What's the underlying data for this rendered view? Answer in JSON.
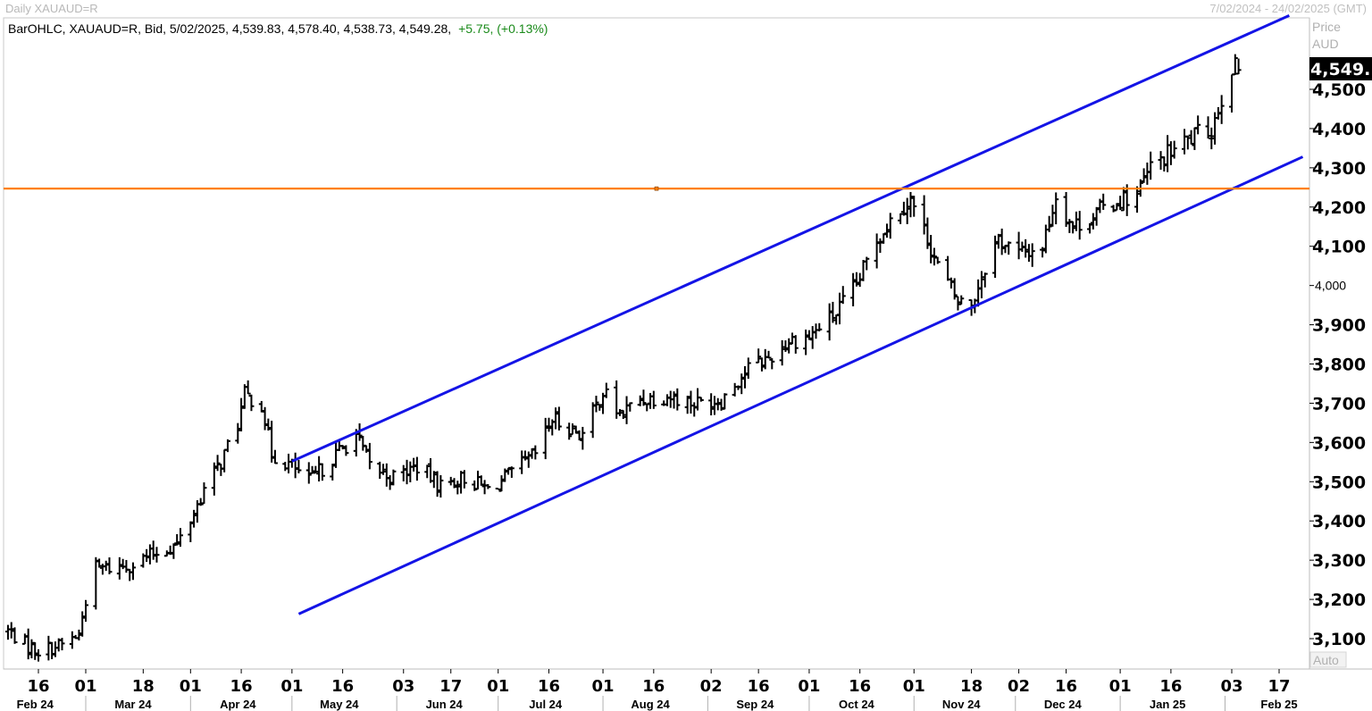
{
  "header": {
    "left_title": "Daily XAUAUD=R",
    "right_range": "7/02/2024 - 24/02/2025 (GMT)"
  },
  "legend": {
    "prefix": "BarOHLC, XAUAUD=R, Bid, 5/02/2025, 4,539.83, 4,578.40, 4,538.73, 4,549.28,",
    "change": "+5.75, (+0.13%)",
    "change_color": "#1a8a1a"
  },
  "axis": {
    "header_line1": "Price",
    "header_line2": "AUD",
    "auto_label": "Auto",
    "last_value_label": "4,549.",
    "last_value": 4549.28
  },
  "chart_data": {
    "type": "bar",
    "subtype": "ohlc",
    "instrument": "XAUAUD=R",
    "y_ticks": [
      {
        "value": 3100,
        "label": "3,100",
        "small": false
      },
      {
        "value": 3200,
        "label": "3,200",
        "small": false
      },
      {
        "value": 3300,
        "label": "3,300",
        "small": false
      },
      {
        "value": 3400,
        "label": "3,400",
        "small": false
      },
      {
        "value": 3500,
        "label": "3,500",
        "small": false
      },
      {
        "value": 3600,
        "label": "3,600",
        "small": false
      },
      {
        "value": 3700,
        "label": "3,700",
        "small": false
      },
      {
        "value": 3800,
        "label": "3,800",
        "small": false
      },
      {
        "value": 3900,
        "label": "3,900",
        "small": false
      },
      {
        "value": 4000,
        "label": "4,000",
        "small": true
      },
      {
        "value": 4100,
        "label": "4,100",
        "small": false
      },
      {
        "value": 4200,
        "label": "4,200",
        "small": false
      },
      {
        "value": 4300,
        "label": "4,300",
        "small": false
      },
      {
        "value": 4400,
        "label": "4,400",
        "small": false
      },
      {
        "value": 4500,
        "label": "4,500",
        "small": false
      }
    ],
    "ylim": [
      3040,
      4640
    ],
    "x_ticks": [
      {
        "date": "2024-02-16",
        "label": "16"
      },
      {
        "date": "2024-03-01",
        "label": "01"
      },
      {
        "date": "2024-03-18",
        "label": "18"
      },
      {
        "date": "2024-04-01",
        "label": "01"
      },
      {
        "date": "2024-04-16",
        "label": "16"
      },
      {
        "date": "2024-05-01",
        "label": "01"
      },
      {
        "date": "2024-05-16",
        "label": "16"
      },
      {
        "date": "2024-06-03",
        "label": "03"
      },
      {
        "date": "2024-06-17",
        "label": "17"
      },
      {
        "date": "2024-07-01",
        "label": "01"
      },
      {
        "date": "2024-07-16",
        "label": "16"
      },
      {
        "date": "2024-08-01",
        "label": "01"
      },
      {
        "date": "2024-08-16",
        "label": "16"
      },
      {
        "date": "2024-09-02",
        "label": "02"
      },
      {
        "date": "2024-09-16",
        "label": "16"
      },
      {
        "date": "2024-10-01",
        "label": "01"
      },
      {
        "date": "2024-10-16",
        "label": "16"
      },
      {
        "date": "2024-11-01",
        "label": "01"
      },
      {
        "date": "2024-11-18",
        "label": "18"
      },
      {
        "date": "2024-12-02",
        "label": "02"
      },
      {
        "date": "2024-12-16",
        "label": "16"
      },
      {
        "date": "2025-01-01",
        "label": "01"
      },
      {
        "date": "2025-01-16",
        "label": "16"
      },
      {
        "date": "2025-02-03",
        "label": "03"
      },
      {
        "date": "2025-02-17",
        "label": "17"
      }
    ],
    "month_labels": [
      {
        "date": "2024-02-15",
        "label": "Feb 24"
      },
      {
        "date": "2024-03-15",
        "label": "Mar 24"
      },
      {
        "date": "2024-04-15",
        "label": "Apr 24"
      },
      {
        "date": "2024-05-15",
        "label": "May 24"
      },
      {
        "date": "2024-06-15",
        "label": "Jun 24"
      },
      {
        "date": "2024-07-15",
        "label": "Jul 24"
      },
      {
        "date": "2024-08-15",
        "label": "Aug 24"
      },
      {
        "date": "2024-09-15",
        "label": "Sep 24"
      },
      {
        "date": "2024-10-15",
        "label": "Oct 24"
      },
      {
        "date": "2024-11-15",
        "label": "Nov 24"
      },
      {
        "date": "2024-12-15",
        "label": "Dec 24"
      },
      {
        "date": "2025-01-15",
        "label": "Jan 25"
      },
      {
        "date": "2025-02-17",
        "label": "Feb 25"
      }
    ],
    "xlim": [
      "2024-02-07",
      "2025-02-24"
    ],
    "path_anchors": [
      [
        "2024-02-07",
        3120
      ],
      [
        "2024-02-13",
        3080
      ],
      [
        "2024-02-16",
        3070
      ],
      [
        "2024-02-23",
        3085
      ],
      [
        "2024-02-28",
        3110
      ],
      [
        "2024-03-01",
        3200
      ],
      [
        "2024-03-04",
        3280
      ],
      [
        "2024-03-08",
        3280
      ],
      [
        "2024-03-15",
        3290
      ],
      [
        "2024-03-22",
        3320
      ],
      [
        "2024-03-28",
        3340
      ],
      [
        "2024-04-02",
        3420
      ],
      [
        "2024-04-05",
        3480
      ],
      [
        "2024-04-10",
        3550
      ],
      [
        "2024-04-15",
        3650
      ],
      [
        "2024-04-17",
        3720
      ],
      [
        "2024-04-22",
        3700
      ],
      [
        "2024-04-25",
        3570
      ],
      [
        "2024-05-01",
        3540
      ],
      [
        "2024-05-06",
        3500
      ],
      [
        "2024-05-13",
        3560
      ],
      [
        "2024-05-20",
        3620
      ],
      [
        "2024-05-24",
        3540
      ],
      [
        "2024-05-31",
        3510
      ],
      [
        "2024-06-07",
        3540
      ],
      [
        "2024-06-14",
        3490
      ],
      [
        "2024-06-21",
        3510
      ],
      [
        "2024-06-28",
        3480
      ],
      [
        "2024-07-05",
        3520
      ],
      [
        "2024-07-12",
        3570
      ],
      [
        "2024-07-17",
        3660
      ],
      [
        "2024-07-26",
        3620
      ],
      [
        "2024-08-01",
        3730
      ],
      [
        "2024-08-06",
        3670
      ],
      [
        "2024-08-12",
        3710
      ],
      [
        "2024-08-20",
        3720
      ],
      [
        "2024-08-28",
        3700
      ],
      [
        "2024-09-05",
        3710
      ],
      [
        "2024-09-13",
        3790
      ],
      [
        "2024-09-20",
        3820
      ],
      [
        "2024-09-25",
        3860
      ],
      [
        "2024-10-01",
        3870
      ],
      [
        "2024-10-09",
        3930
      ],
      [
        "2024-10-15",
        4000
      ],
      [
        "2024-10-21",
        4120
      ],
      [
        "2024-10-28",
        4200
      ],
      [
        "2024-10-31",
        4220
      ],
      [
        "2024-11-05",
        4120
      ],
      [
        "2024-11-08",
        4050
      ],
      [
        "2024-11-14",
        3960
      ],
      [
        "2024-11-18",
        3950
      ],
      [
        "2024-11-22",
        4050
      ],
      [
        "2024-11-26",
        4120
      ],
      [
        "2024-12-02",
        4080
      ],
      [
        "2024-12-09",
        4100
      ],
      [
        "2024-12-13",
        4230
      ],
      [
        "2024-12-18",
        4150
      ],
      [
        "2024-12-24",
        4180
      ],
      [
        "2025-01-01",
        4220
      ],
      [
        "2025-01-06",
        4230
      ],
      [
        "2025-01-10",
        4300
      ],
      [
        "2025-01-16",
        4340
      ],
      [
        "2025-01-23",
        4380
      ],
      [
        "2025-01-28",
        4400
      ],
      [
        "2025-01-31",
        4480
      ],
      [
        "2025-02-03",
        4560
      ],
      [
        "2025-02-05",
        4549
      ]
    ],
    "last_bar": {
      "date": "2025-02-05",
      "open": 4539.83,
      "high": 4578.4,
      "low": 4538.73,
      "close": 4549.28
    },
    "trendlines": [
      {
        "name": "upper-channel",
        "color": "#1414e6",
        "from": [
          "2024-05-01",
          3552
        ],
        "to": [
          "2025-02-20",
          4688
        ]
      },
      {
        "name": "lower-channel",
        "color": "#1414e6",
        "from": [
          "2024-05-03",
          3163
        ],
        "to": [
          "2025-02-24",
          4328
        ]
      },
      {
        "name": "horizontal-resistance",
        "color": "#ff7f00",
        "y": 4247
      }
    ],
    "grid": false,
    "legend_position": "top-left"
  }
}
